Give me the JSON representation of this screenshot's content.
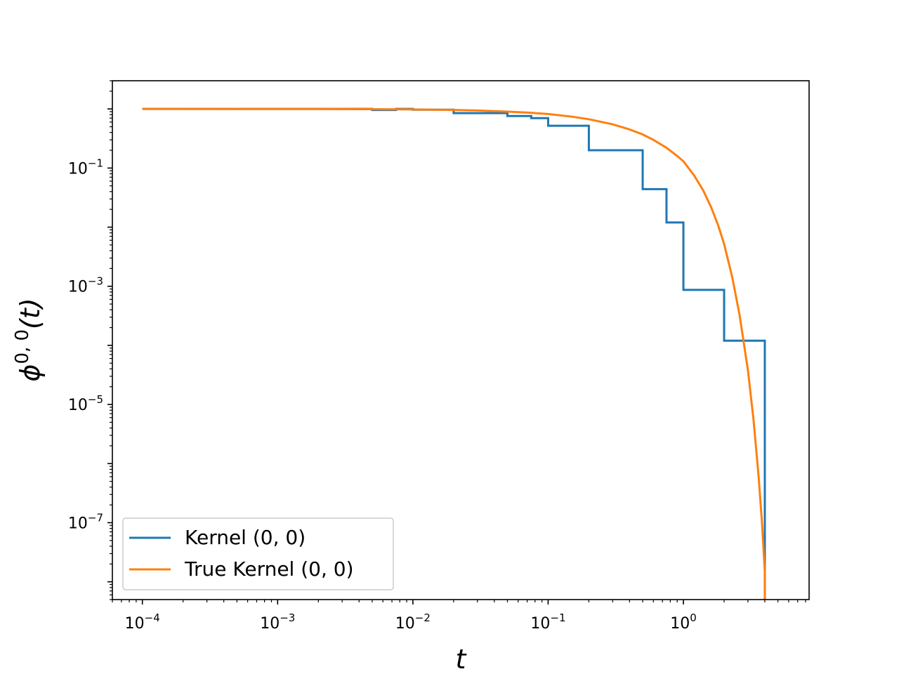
{
  "chart_data": {
    "type": "line",
    "xscale": "log",
    "yscale": "log",
    "xlim": [
      6e-05,
      8.5
    ],
    "ylim": [
      5e-09,
      3.0
    ],
    "xlabel": "t",
    "ylabel": {
      "base": "ϕ",
      "sup": "0, 0",
      "arg": "(t)"
    },
    "grid": false,
    "legend_position": "lower left",
    "x_ticks": [
      {
        "value": 0.0001,
        "base": "10",
        "exp": "−4"
      },
      {
        "value": 0.001,
        "base": "10",
        "exp": "−3"
      },
      {
        "value": 0.01,
        "base": "10",
        "exp": "−2"
      },
      {
        "value": 0.1,
        "base": "10",
        "exp": "−1"
      },
      {
        "value": 1,
        "base": "10",
        "exp": "0"
      }
    ],
    "y_ticks": [
      {
        "value": 0.1,
        "base": "10",
        "exp": "−1"
      },
      {
        "value": 0.001,
        "base": "10",
        "exp": "−3"
      },
      {
        "value": 1e-05,
        "base": "10",
        "exp": "−5"
      },
      {
        "value": 1e-07,
        "base": "10",
        "exp": "−7"
      }
    ],
    "series": [
      {
        "name": "Kernel (0, 0)",
        "color": "#1f77b4",
        "style": "step",
        "x": [
          0.0001,
          0.005,
          0.005,
          0.0075,
          0.0075,
          0.01,
          0.01,
          0.02,
          0.02,
          0.05,
          0.05,
          0.075,
          0.075,
          0.1,
          0.1,
          0.2,
          0.2,
          0.5,
          0.5,
          0.75,
          0.75,
          1.0,
          1.0,
          2.0,
          2.0,
          4.0,
          4.0
        ],
        "y": [
          1.0,
          1.0,
          0.96,
          0.96,
          1.0,
          1.0,
          0.97,
          0.97,
          0.85,
          0.85,
          0.76,
          0.76,
          0.7,
          0.7,
          0.52,
          0.52,
          0.2,
          0.2,
          0.044,
          0.044,
          0.012,
          0.012,
          0.00087,
          0.00087,
          0.00012,
          0.00012,
          5e-09
        ]
      },
      {
        "name": "True Kernel (0, 0)",
        "color": "#ff7f0e",
        "style": "line",
        "x": [
          0.0001,
          0.0002,
          0.0005,
          0.001,
          0.002,
          0.005,
          0.01,
          0.02,
          0.03,
          0.05,
          0.075,
          0.1,
          0.15,
          0.2,
          0.3,
          0.4,
          0.5,
          0.6,
          0.75,
          0.9,
          1.0,
          1.2,
          1.4,
          1.6,
          1.8,
          2.0,
          2.3,
          2.6,
          3.0,
          3.3,
          3.6,
          3.8,
          4.0,
          4.0
        ],
        "y": [
          1.0,
          1.0,
          0.999,
          0.998,
          0.996,
          0.99,
          0.98,
          0.96,
          0.94,
          0.9,
          0.86,
          0.82,
          0.74,
          0.67,
          0.55,
          0.45,
          0.37,
          0.3,
          0.22,
          0.16,
          0.13,
          0.075,
          0.042,
          0.022,
          0.011,
          0.0052,
          0.0014,
          0.00033,
          3.8e-05,
          5.5e-06,
          6e-07,
          1.1e-07,
          1.5e-08,
          5e-09
        ]
      }
    ]
  }
}
